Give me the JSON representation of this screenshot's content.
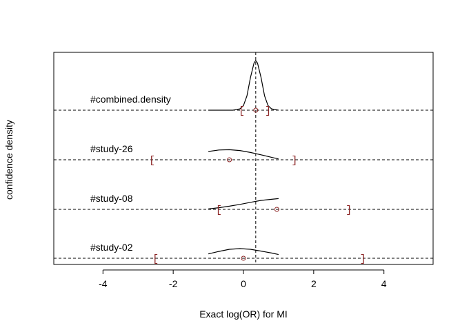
{
  "chart_data": {
    "type": "line",
    "title": "",
    "xlabel": "Exact log(OR) for MI",
    "ylabel": "confidence density",
    "xlim": [
      -5.4,
      5.4
    ],
    "xticks": [
      -4,
      -2,
      0,
      2,
      4
    ],
    "xtick_labels": [
      "-4",
      "-2",
      "0",
      "2",
      "4"
    ],
    "reference_line_x": 0.35,
    "grid": false,
    "bracket_color": "#8b2323",
    "rows": [
      {
        "label": "#study-02",
        "estimate": 0.0,
        "ci": [
          -2.5,
          3.4
        ],
        "density_x": [
          -1.0,
          -0.7,
          -0.4,
          -0.1,
          0.2,
          0.5,
          0.8,
          1.0
        ],
        "density_y": [
          0.35,
          0.55,
          0.72,
          0.78,
          0.72,
          0.58,
          0.42,
          0.3
        ]
      },
      {
        "label": "#study-08",
        "estimate": 0.95,
        "ci": [
          -0.7,
          3.0
        ],
        "density_x": [
          -1.0,
          -0.7,
          -0.4,
          -0.1,
          0.2,
          0.5,
          0.8,
          1.0
        ],
        "density_y": [
          0.05,
          0.2,
          0.38,
          0.6,
          0.85,
          1.08,
          1.22,
          1.3
        ]
      },
      {
        "label": "#study-26",
        "estimate": -0.4,
        "ci": [
          -2.6,
          1.45
        ],
        "density_x": [
          -1.0,
          -0.7,
          -0.4,
          -0.1,
          0.2,
          0.5,
          0.8,
          1.0
        ],
        "density_y": [
          1.0,
          1.18,
          1.22,
          1.12,
          0.88,
          0.6,
          0.3,
          0.1
        ]
      },
      {
        "label": "#combined.density",
        "estimate": 0.35,
        "ci": [
          -0.05,
          0.7
        ],
        "density_x": [
          -1.0,
          -0.3,
          -0.1,
          0.0,
          0.1,
          0.2,
          0.3,
          0.35,
          0.4,
          0.5,
          0.6,
          0.7,
          0.8,
          1.0
        ],
        "density_y": [
          0.0,
          0.0,
          0.1,
          0.35,
          1.1,
          2.5,
          3.6,
          3.8,
          3.6,
          2.5,
          1.1,
          0.35,
          0.1,
          0.0
        ]
      }
    ]
  }
}
